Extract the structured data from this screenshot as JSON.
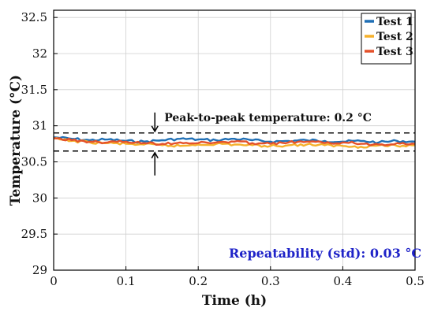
{
  "colors": {
    "test1": "#1f6fb5",
    "test2": "#f5b12c",
    "test3": "#e4512a",
    "grid": "#cfcfcf",
    "axis": "#000000",
    "band": "#000000",
    "repeatability": "#1f23c8"
  },
  "chart_data": {
    "type": "line",
    "title": "",
    "xlabel": "Time (h)",
    "ylabel": "Temperature (°C)",
    "xlim": [
      0,
      0.5
    ],
    "ylim": [
      29,
      32.6
    ],
    "x_ticks": [
      0,
      0.1,
      0.2,
      0.3,
      0.4,
      0.5
    ],
    "x_tick_labels": [
      "0",
      "0.1",
      "0.2",
      "0.3",
      "0.4",
      "0.5"
    ],
    "y_ticks": [
      29,
      29.5,
      30,
      30.5,
      31,
      31.5,
      32,
      32.5
    ],
    "y_tick_labels": [
      "29",
      "29.5",
      "30",
      "30.5",
      "31",
      "31.5",
      "32",
      "32.5"
    ],
    "grid": true,
    "legend_position": "top-right",
    "series": [
      {
        "name": "Test 1",
        "color": "#1f6fb5",
        "x": [
          0,
          0.025,
          0.05,
          0.075,
          0.1,
          0.125,
          0.15,
          0.175,
          0.2,
          0.225,
          0.25,
          0.275,
          0.3,
          0.325,
          0.35,
          0.375,
          0.4,
          0.425,
          0.45,
          0.475,
          0.5
        ],
        "y": [
          30.84,
          30.82,
          30.8,
          30.81,
          30.79,
          30.78,
          30.8,
          30.82,
          30.81,
          30.8,
          30.82,
          30.8,
          30.78,
          30.79,
          30.8,
          30.79,
          30.78,
          30.79,
          30.77,
          30.79,
          30.78
        ]
      },
      {
        "name": "Test 2",
        "color": "#f5b12c",
        "x": [
          0,
          0.025,
          0.05,
          0.075,
          0.1,
          0.125,
          0.15,
          0.175,
          0.2,
          0.225,
          0.25,
          0.275,
          0.3,
          0.325,
          0.35,
          0.375,
          0.4,
          0.425,
          0.45,
          0.475,
          0.5
        ],
        "y": [
          30.82,
          30.79,
          30.77,
          30.76,
          30.75,
          30.74,
          30.73,
          30.72,
          30.74,
          30.75,
          30.74,
          30.73,
          30.72,
          30.73,
          30.74,
          30.73,
          30.72,
          30.71,
          30.73,
          30.72,
          30.73
        ]
      },
      {
        "name": "Test 3",
        "color": "#e4512a",
        "x": [
          0,
          0.025,
          0.05,
          0.075,
          0.1,
          0.125,
          0.15,
          0.175,
          0.2,
          0.225,
          0.25,
          0.275,
          0.3,
          0.325,
          0.35,
          0.375,
          0.4,
          0.425,
          0.45,
          0.475,
          0.5
        ],
        "y": [
          30.83,
          30.8,
          30.78,
          30.77,
          30.78,
          30.76,
          30.75,
          30.77,
          30.76,
          30.77,
          30.78,
          30.76,
          30.75,
          30.77,
          30.78,
          30.76,
          30.77,
          30.75,
          30.74,
          30.76,
          30.75
        ]
      }
    ],
    "bands": [
      30.9,
      30.65
    ],
    "annotations": {
      "peak_to_peak": "Peak-to-peak temperature: 0.2 °C",
      "repeatability": "Repeatability (std): 0.03 °C"
    },
    "arrow_x": 0.14
  }
}
